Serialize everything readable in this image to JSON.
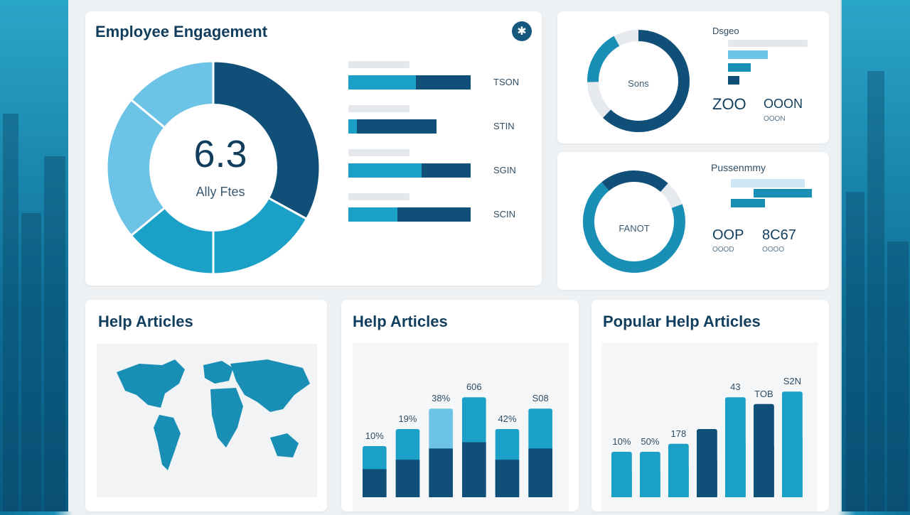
{
  "colors": {
    "dark": "#0f4f78",
    "mid": "#1a8fb6",
    "teal": "#1ba0c7",
    "light": "#6cc3e6",
    "pale": "#e6eaee"
  },
  "engagement": {
    "title": "Employee Engagement",
    "score": "6.3",
    "score_label": "Ally Ftes",
    "bars": [
      {
        "label": "TSON",
        "values": [
          0.55,
          0.45
        ]
      },
      {
        "label": "STIN",
        "values": [
          0.07,
          0.65
        ]
      },
      {
        "label": "SGIN",
        "values": [
          0.6,
          0.4
        ]
      },
      {
        "label": "SCIN",
        "values": [
          0.4,
          0.6
        ]
      }
    ]
  },
  "panel_top": {
    "title": "Dsgeo",
    "center_label": "Sons",
    "stat1": "ZOO",
    "stat2": "OOON",
    "stat2_sub": "OOON"
  },
  "panel_mid": {
    "title": "Pussenmmy",
    "center_label": "FANOT",
    "stat1": "OOP",
    "stat1_sub": "OOOD",
    "stat2": "8C67",
    "stat2_sub": "OOOO"
  },
  "help_map": {
    "title": "Help Articles"
  },
  "help_chart": {
    "title": "Help Articles"
  },
  "popular": {
    "title": "Popular Help Articles"
  },
  "chart_data": [
    {
      "type": "bar",
      "title": "Help Articles",
      "categories": [
        "1",
        "2",
        "3",
        "4",
        "5",
        "6"
      ],
      "labels": [
        "10%",
        "19%",
        "38%",
        "606",
        "42%",
        "S08"
      ],
      "series": [
        {
          "values": [
            0.45,
            0.6,
            0.78,
            0.88,
            0.6,
            0.78
          ]
        }
      ],
      "ylim": [
        0,
        1
      ]
    },
    {
      "type": "bar",
      "title": "Popular Help Articles",
      "categories": [
        "1",
        "2",
        "3",
        "4",
        "5",
        "6",
        "7"
      ],
      "labels": [
        "10%",
        "50%",
        "178",
        "",
        "43",
        "TOB",
        "S2N"
      ],
      "series": [
        {
          "values": [
            0.4,
            0.4,
            0.47,
            0.6,
            0.88,
            0.82,
            0.93
          ]
        }
      ],
      "ylim": [
        0,
        1
      ]
    }
  ]
}
